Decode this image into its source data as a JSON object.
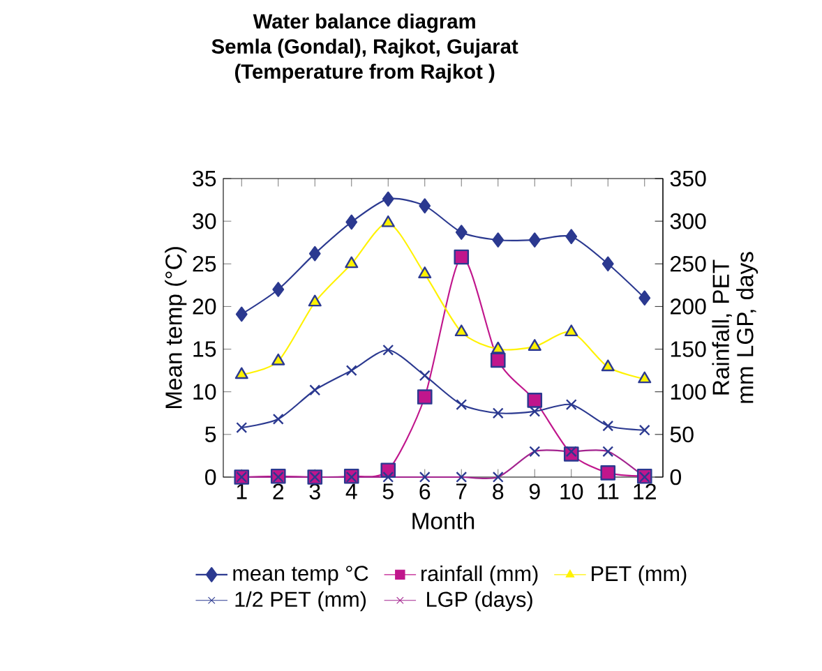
{
  "chart_data": {
    "type": "line",
    "title": "Water balance diagram",
    "subtitle": "Semla (Gondal), Rajkot, Gujarat",
    "annotations": [
      "(Temperature from Rajkot )"
    ],
    "xlabel": "Month",
    "ylabel": "Mean temp (°C)",
    "y2label": "Rainfall, PET mm LGP, days",
    "categories": [
      "1",
      "2",
      "3",
      "4",
      "5",
      "6",
      "7",
      "8",
      "9",
      "10",
      "11",
      "12"
    ],
    "ylim": [
      0,
      35
    ],
    "yticks": [
      0,
      5,
      10,
      15,
      20,
      25,
      30,
      35
    ],
    "y2lim": [
      0,
      350
    ],
    "y2ticks": [
      0,
      50,
      100,
      150,
      200,
      250,
      300,
      350
    ],
    "legend": "bottom",
    "grid": false,
    "series": [
      {
        "name": "mean temp °C",
        "color": "#2b3990",
        "marker": "diamond",
        "values": [
          19.1,
          22,
          26.2,
          29.9,
          32.6,
          31.8,
          28.7,
          27.8,
          27.8,
          28.2,
          25,
          21
        ]
      },
      {
        "name": "rainfall (mm)",
        "color": "#c0168c",
        "marker": "square",
        "axis": "y2",
        "values": [
          0,
          1,
          0,
          1,
          8,
          94,
          258,
          137,
          90,
          27,
          5,
          1
        ]
      },
      {
        "name": "PET (mm)",
        "color": "#fff200",
        "marker": "triangle",
        "axis": "y2",
        "values": [
          120,
          136,
          205,
          250,
          298,
          238,
          170,
          150,
          153,
          170,
          129,
          115
        ]
      },
      {
        "name": "1/2 PET (mm)",
        "color": "#2b3990",
        "marker": "cross",
        "axis": "y2",
        "values": [
          58,
          68,
          102,
          125,
          149,
          119,
          85,
          75,
          77,
          85,
          60,
          55
        ]
      },
      {
        "name": "LGP (days)",
        "color": "#a3248f",
        "marker": "cross",
        "axis": "y2",
        "values": [
          0,
          0,
          0,
          0,
          0,
          0,
          0,
          0,
          30,
          30,
          30,
          0
        ]
      }
    ]
  }
}
